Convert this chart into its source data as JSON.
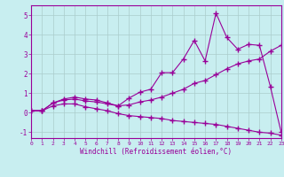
{
  "xlabel": "Windchill (Refroidissement éolien,°C)",
  "bg_color": "#c8eef0",
  "line_color": "#990099",
  "grid_color": "#aacccc",
  "xlim": [
    0,
    23
  ],
  "ylim": [
    -1.3,
    5.5
  ],
  "xticks": [
    0,
    1,
    2,
    3,
    4,
    5,
    6,
    7,
    8,
    9,
    10,
    11,
    12,
    13,
    14,
    15,
    16,
    17,
    18,
    19,
    20,
    21,
    22,
    23
  ],
  "yticks": [
    -1,
    0,
    1,
    2,
    3,
    4,
    5
  ],
  "line1_x": [
    0,
    1,
    2,
    3,
    4,
    5,
    6,
    7,
    8,
    9,
    10,
    11,
    12,
    13,
    14,
    15,
    16,
    17,
    18,
    19,
    20,
    21,
    22,
    23
  ],
  "line1_y": [
    0.1,
    0.1,
    0.5,
    0.7,
    0.8,
    0.7,
    0.65,
    0.5,
    0.35,
    0.75,
    1.05,
    1.2,
    2.05,
    2.05,
    2.75,
    3.7,
    2.65,
    5.1,
    3.85,
    3.25,
    3.5,
    3.45,
    1.35,
    -1.0
  ],
  "line2_x": [
    0,
    1,
    2,
    3,
    4,
    5,
    6,
    7,
    8,
    9,
    10,
    11,
    12,
    13,
    14,
    15,
    16,
    17,
    18,
    19,
    20,
    21,
    22,
    23
  ],
  "line2_y": [
    0.1,
    0.1,
    0.5,
    0.65,
    0.7,
    0.6,
    0.55,
    0.45,
    0.35,
    0.4,
    0.55,
    0.65,
    0.8,
    1.0,
    1.2,
    1.5,
    1.65,
    1.95,
    2.25,
    2.5,
    2.65,
    2.75,
    3.15,
    3.45
  ],
  "line3_x": [
    0,
    1,
    2,
    3,
    4,
    5,
    6,
    7,
    8,
    9,
    10,
    11,
    12,
    13,
    14,
    15,
    16,
    17,
    18,
    19,
    20,
    21,
    22,
    23
  ],
  "line3_y": [
    0.1,
    0.1,
    0.35,
    0.45,
    0.45,
    0.3,
    0.2,
    0.1,
    -0.05,
    -0.15,
    -0.2,
    -0.25,
    -0.3,
    -0.4,
    -0.45,
    -0.5,
    -0.55,
    -0.6,
    -0.7,
    -0.8,
    -0.9,
    -1.0,
    -1.05,
    -1.15
  ]
}
